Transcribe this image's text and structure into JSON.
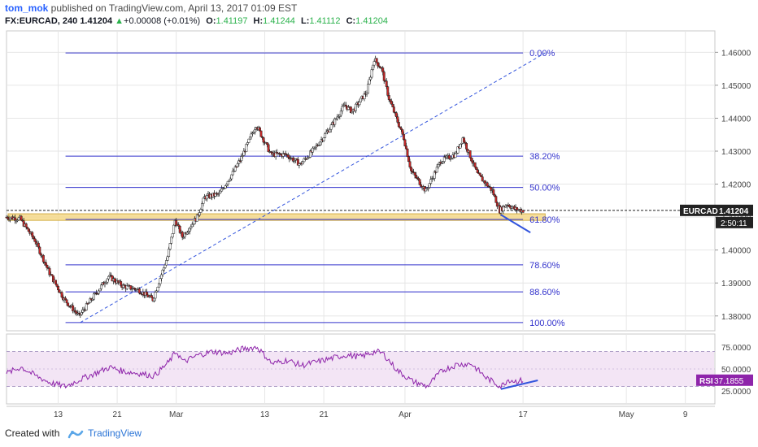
{
  "header": {
    "username": "tom_mok",
    "published_text": " published on TradingView.com, April 13, 2017 01:09 EST",
    "symbol": "FX:EURCAD, 240",
    "last": "1.41204",
    "change": "+0.00008 (+0.01%)",
    "open_label": "O:",
    "open": "1.41197",
    "high_label": "H:",
    "high": "1.41244",
    "low_label": "L:",
    "low": "1.41112",
    "close_label": "C:",
    "close": "1.41204"
  },
  "footer": {
    "created_with": "Created with",
    "brand": "TradingView"
  },
  "colors": {
    "up": "#2bb24c",
    "down": "#c62828",
    "candle": "#222222",
    "fib": "#3333cc",
    "trend": "#3355dd",
    "zone": "#f5d88a",
    "rsi": "#8e24aa",
    "rsi_band": "#f3e5f5",
    "grid": "#e6e6e6"
  },
  "chart_data": {
    "type": "candlestick",
    "symbol": "EURCAD",
    "price_axis": {
      "ticks": [
        "1.46000",
        "1.45000",
        "1.44000",
        "1.43000",
        "1.42000",
        "1.41000",
        "1.40000",
        "1.39000",
        "1.38000"
      ],
      "range": [
        1.3755,
        1.4665
      ]
    },
    "time_axis": {
      "ticks": [
        {
          "label": "13",
          "date": "2017-02-13"
        },
        {
          "label": "21",
          "date": "2017-02-21"
        },
        {
          "label": "Mar",
          "date": "2017-03-01"
        },
        {
          "label": "13",
          "date": "2017-03-13"
        },
        {
          "label": "21",
          "date": "2017-03-21"
        },
        {
          "label": "Apr",
          "date": "2017-04-01"
        },
        {
          "label": "17",
          "date": "2017-04-17"
        },
        {
          "label": "May",
          "date": "2017-05-01"
        },
        {
          "label": "9",
          "date": "2017-05-09"
        }
      ]
    },
    "price_path": [
      [
        "2017-02-06",
        1.41
      ],
      [
        "2017-02-08",
        1.4095
      ],
      [
        "2017-02-10",
        1.403
      ],
      [
        "2017-02-12",
        1.393
      ],
      [
        "2017-02-14",
        1.385
      ],
      [
        "2017-02-16",
        1.38
      ],
      [
        "2017-02-18",
        1.386
      ],
      [
        "2017-02-20",
        1.392
      ],
      [
        "2017-02-22",
        1.389
      ],
      [
        "2017-02-24",
        1.388
      ],
      [
        "2017-02-26",
        1.385
      ],
      [
        "2017-02-28",
        1.398
      ],
      [
        "2017-03-01",
        1.409
      ],
      [
        "2017-03-02",
        1.404
      ],
      [
        "2017-03-04",
        1.41
      ],
      [
        "2017-03-05",
        1.416
      ],
      [
        "2017-03-07",
        1.417
      ],
      [
        "2017-03-09",
        1.424
      ],
      [
        "2017-03-10",
        1.428
      ],
      [
        "2017-03-12",
        1.438
      ],
      [
        "2017-03-14",
        1.429
      ],
      [
        "2017-03-16",
        1.429
      ],
      [
        "2017-03-18",
        1.426
      ],
      [
        "2017-03-20",
        1.431
      ],
      [
        "2017-03-22",
        1.437
      ],
      [
        "2017-03-24",
        1.444
      ],
      [
        "2017-03-25",
        1.442
      ],
      [
        "2017-03-27",
        1.448
      ],
      [
        "2017-03-28",
        1.458
      ],
      [
        "2017-03-29",
        1.455
      ],
      [
        "2017-03-30",
        1.446
      ],
      [
        "2017-04-01",
        1.434
      ],
      [
        "2017-04-02",
        1.424
      ],
      [
        "2017-04-04",
        1.418
      ],
      [
        "2017-04-06",
        1.427
      ],
      [
        "2017-04-08",
        1.429
      ],
      [
        "2017-04-09",
        1.434
      ],
      [
        "2017-04-11",
        1.423
      ],
      [
        "2017-04-13",
        1.418
      ],
      [
        "2017-04-14",
        1.412
      ],
      [
        "2017-04-15",
        1.414
      ],
      [
        "2017-04-16",
        1.4125
      ],
      [
        "2017-04-17",
        1.412
      ]
    ],
    "last_price": {
      "symbol": "EURCAD",
      "value": "1.41204",
      "countdown": "2:50:11"
    },
    "fibonacci": [
      {
        "label": "0.00%",
        "price": 1.4598
      },
      {
        "label": "38.20%",
        "price": 1.4285
      },
      {
        "label": "50.00%",
        "price": 1.419
      },
      {
        "label": "61.80%",
        "price": 1.4093
      },
      {
        "label": "78.60%",
        "price": 1.3955
      },
      {
        "label": "88.60%",
        "price": 1.3873
      },
      {
        "label": "100.00%",
        "price": 1.378
      }
    ],
    "fib_range": {
      "start": "2017-02-14",
      "end": "2017-04-17"
    },
    "support_zone": {
      "from": 1.409,
      "to": 1.411
    },
    "trendline": {
      "from": [
        "2017-02-16",
        1.378
      ],
      "to": [
        "2017-04-20",
        1.4598
      ]
    },
    "divergence_price": {
      "from": [
        "2017-04-14",
        1.4107
      ],
      "to": [
        "2017-04-18",
        1.4053
      ]
    },
    "rsi": {
      "label": "RSI",
      "value": "37.1855",
      "ticks": [
        "75.0000",
        "50.0000",
        "25.0000"
      ],
      "range": [
        10,
        90
      ],
      "band": [
        30,
        70
      ],
      "path": [
        [
          "2017-02-06",
          45
        ],
        [
          "2017-02-08",
          52
        ],
        [
          "2017-02-10",
          42
        ],
        [
          "2017-02-12",
          34
        ],
        [
          "2017-02-14",
          30
        ],
        [
          "2017-02-16",
          38
        ],
        [
          "2017-02-18",
          45
        ],
        [
          "2017-02-20",
          52
        ],
        [
          "2017-02-22",
          47
        ],
        [
          "2017-02-24",
          45
        ],
        [
          "2017-02-26",
          42
        ],
        [
          "2017-02-28",
          58
        ],
        [
          "2017-03-01",
          70
        ],
        [
          "2017-03-02",
          58
        ],
        [
          "2017-03-04",
          66
        ],
        [
          "2017-03-06",
          70
        ],
        [
          "2017-03-08",
          68
        ],
        [
          "2017-03-10",
          73
        ],
        [
          "2017-03-12",
          75
        ],
        [
          "2017-03-14",
          56
        ],
        [
          "2017-03-16",
          60
        ],
        [
          "2017-03-18",
          54
        ],
        [
          "2017-03-20",
          58
        ],
        [
          "2017-03-22",
          62
        ],
        [
          "2017-03-24",
          66
        ],
        [
          "2017-03-26",
          64
        ],
        [
          "2017-03-28",
          70
        ],
        [
          "2017-03-29",
          68
        ],
        [
          "2017-03-31",
          48
        ],
        [
          "2017-04-02",
          36
        ],
        [
          "2017-04-04",
          30
        ],
        [
          "2017-04-06",
          48
        ],
        [
          "2017-04-08",
          55
        ],
        [
          "2017-04-10",
          56
        ],
        [
          "2017-04-12",
          40
        ],
        [
          "2017-04-14",
          30
        ],
        [
          "2017-04-15",
          38
        ],
        [
          "2017-04-16",
          36
        ],
        [
          "2017-04-17",
          37
        ]
      ],
      "divergence": {
        "from": [
          "2017-04-14",
          27
        ],
        "to": [
          "2017-04-19",
          37
        ]
      }
    }
  }
}
